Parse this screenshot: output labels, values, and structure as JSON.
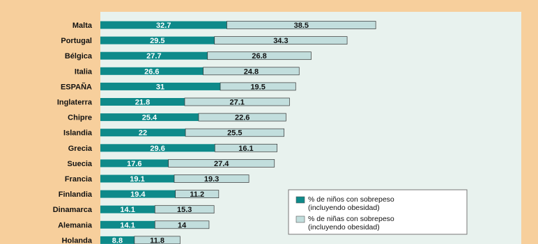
{
  "colors": {
    "background": "#f7cf9c",
    "plot_area": "#e8f2ee",
    "boys": "#0e8a8a",
    "girls": "#c2dedd",
    "boys_label": "#ffffff",
    "girls_label": "#111111"
  },
  "chart_data": {
    "type": "bar",
    "orientation": "horizontal",
    "stacked": true,
    "categories": [
      "Malta",
      "Portugal",
      "Bélgica",
      "Italia",
      "ESPAÑA",
      "Inglaterra",
      "Chipre",
      "Islandia",
      "Grecia",
      "Suecia",
      "Francia",
      "Finlandia",
      "Dinamarca",
      "Alemania",
      "Holanda"
    ],
    "series": [
      {
        "name": "% de niños con sobrepeso (incluyendo obesidad)",
        "values": [
          32.7,
          29.5,
          27.7,
          26.6,
          31,
          21.8,
          25.4,
          22,
          29.6,
          17.6,
          19.1,
          19.4,
          14.1,
          14.1,
          8.8
        ]
      },
      {
        "name": "% de niñas con sobrepeso (incluyendo obesidad)",
        "values": [
          38.5,
          34.3,
          26.8,
          24.8,
          19.5,
          27.1,
          22.6,
          25.5,
          16.1,
          27.4,
          19.3,
          11.2,
          15.3,
          14,
          11.8
        ]
      }
    ],
    "legend": {
      "placement": "bottom-right",
      "entries": [
        {
          "line1": "% de niños con sobrepeso",
          "line2": "(incluyendo obesidad)"
        },
        {
          "line1": "% de niñas con sobrepeso",
          "line2": "(incluyendo obesidad)"
        }
      ]
    },
    "xlim": [
      0,
      100
    ],
    "grid": false,
    "title": "",
    "xlabel": "",
    "ylabel": ""
  }
}
